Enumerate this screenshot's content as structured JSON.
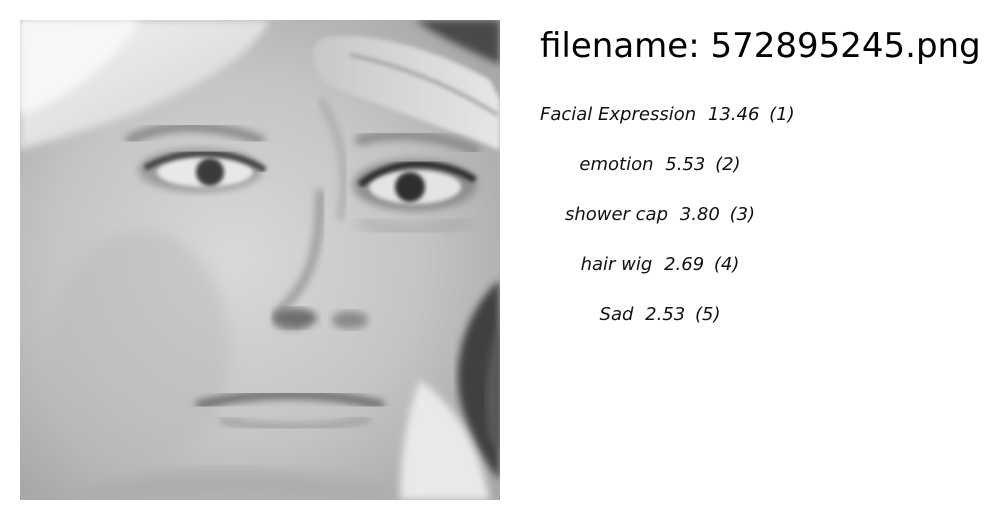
{
  "filename": {
    "prefix": "filename:",
    "value": "572895245.png"
  },
  "predictions": [
    {
      "label": "Facial Expression",
      "score": "13.46",
      "rank": "(1)"
    },
    {
      "label": "emotion",
      "score": "5.53",
      "rank": "(2)"
    },
    {
      "label": "shower cap",
      "score": "3.80",
      "rank": "(3)"
    },
    {
      "label": "hair wig",
      "score": "2.69",
      "rank": "(4)"
    },
    {
      "label": "Sad",
      "score": "2.53",
      "rank": "(5)"
    }
  ]
}
